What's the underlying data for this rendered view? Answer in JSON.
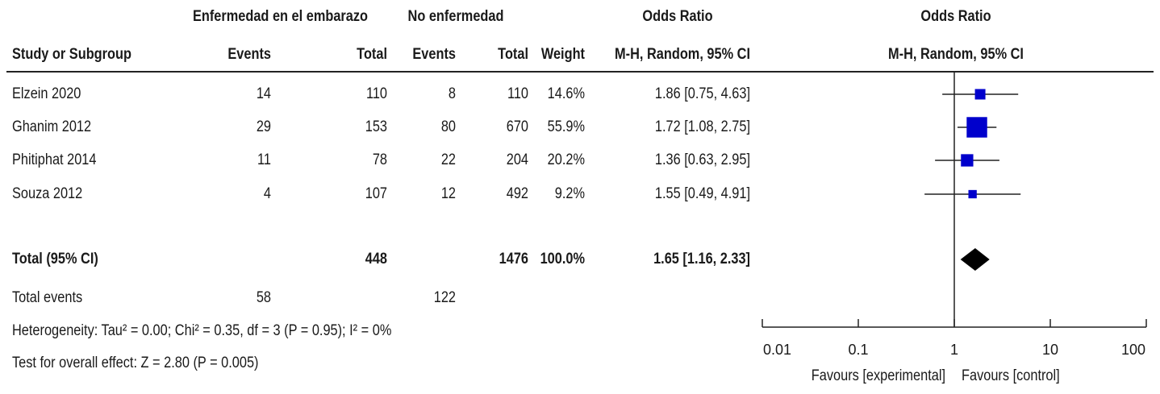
{
  "header": {
    "group1": "Enfermedad en el embarazo",
    "group2": "No enfermedad",
    "or_title": "Odds Ratio",
    "or_plot_title": "Odds Ratio",
    "study_col": "Study or Subgroup",
    "events1": "Events",
    "total1": "Total",
    "events2": "Events",
    "total2": "Total",
    "weight": "Weight",
    "method": "M-H, Random, 95% CI",
    "method_plot": "M-H, Random, 95% CI"
  },
  "studies": [
    {
      "name": "Elzein 2020",
      "e1": "14",
      "t1": "110",
      "e2": "8",
      "t2": "110",
      "weight": "14.6%",
      "ci": "1.86 [0.75, 4.63]"
    },
    {
      "name": "Ghanim 2012",
      "e1": "29",
      "t1": "153",
      "e2": "80",
      "t2": "670",
      "weight": "55.9%",
      "ci": "1.72 [1.08, 2.75]"
    },
    {
      "name": "Phitiphat 2014",
      "e1": "11",
      "t1": "78",
      "e2": "22",
      "t2": "204",
      "weight": "20.2%",
      "ci": "1.36 [0.63, 2.95]"
    },
    {
      "name": "Souza 2012",
      "e1": "4",
      "t1": "107",
      "e2": "12",
      "t2": "492",
      "weight": "9.2%",
      "ci": "1.55 [0.49, 4.91]"
    }
  ],
  "total": {
    "label": "Total (95% CI)",
    "t1": "448",
    "t2": "1476",
    "weight": "100.0%",
    "ci": "1.65 [1.16, 2.33]"
  },
  "total_events": {
    "label": "Total events",
    "e1": "58",
    "e2": "122"
  },
  "heterogeneity": "Heterogeneity: Tau² = 0.00; Chi² = 0.35, df = 3 (P = 0.95); I² = 0%",
  "overall_effect": "Test for overall effect: Z = 2.80 (P = 0.005)",
  "axis_ticks": [
    "0.01",
    "0.1",
    "1",
    "10",
    "100"
  ],
  "favours_left": "Favours [experimental]",
  "favours_right": "Favours [control]",
  "colors": {
    "marker": "#0000cc",
    "line": "#222222",
    "diamond": "#000000"
  },
  "chart_data": {
    "type": "forest",
    "scale": "log",
    "xlim": [
      0.01,
      100
    ],
    "null_value": 1,
    "ticks": [
      0.01,
      0.1,
      1,
      10,
      100
    ],
    "studies": [
      {
        "name": "Elzein 2020",
        "or": 1.86,
        "lo": 0.75,
        "hi": 4.63,
        "weight": 14.6
      },
      {
        "name": "Ghanim 2012",
        "or": 1.72,
        "lo": 1.08,
        "hi": 2.75,
        "weight": 55.9
      },
      {
        "name": "Phitiphat 2014",
        "or": 1.36,
        "lo": 0.63,
        "hi": 2.95,
        "weight": 20.2
      },
      {
        "name": "Souza 2012",
        "or": 1.55,
        "lo": 0.49,
        "hi": 4.91,
        "weight": 9.2
      }
    ],
    "pooled": {
      "or": 1.65,
      "lo": 1.16,
      "hi": 2.33
    }
  }
}
